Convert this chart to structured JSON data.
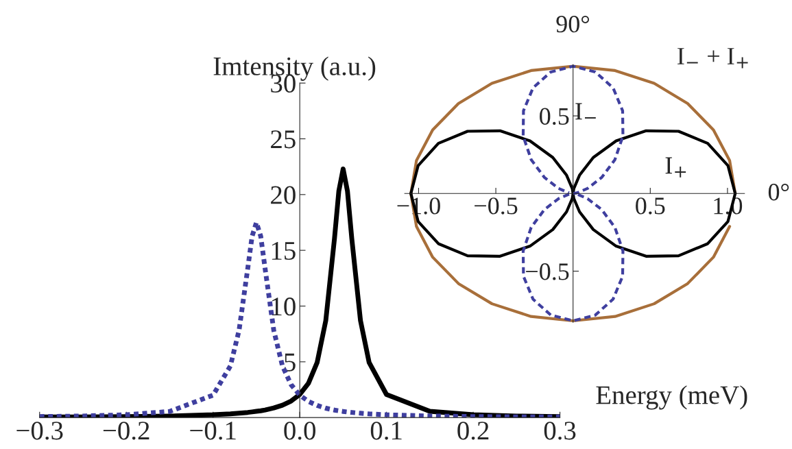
{
  "chart_data": [
    {
      "type": "line",
      "xlabel": "Energy (meV)",
      "ylabel": "Imtensity (a.u.)",
      "x": [
        -0.3,
        -0.25,
        -0.2,
        -0.15,
        -0.1,
        -0.08,
        -0.07,
        -0.06,
        -0.055,
        -0.05,
        -0.045,
        -0.04,
        -0.03,
        -0.02,
        -0.01,
        0,
        0.01,
        0.02,
        0.03,
        0.04,
        0.045,
        0.05,
        0.055,
        0.06,
        0.07,
        0.08,
        0.1,
        0.15,
        0.2,
        0.25,
        0.3
      ],
      "series": [
        {
          "color": "#000000",
          "line_style": "solid",
          "values": [
            0.05,
            0.06,
            0.09,
            0.14,
            0.25,
            0.33,
            0.39,
            0.46,
            0.51,
            0.56,
            0.61,
            0.68,
            0.86,
            1.11,
            1.48,
            2.07,
            3.08,
            4.93,
            8.7,
            16.04,
            20.3,
            22.3,
            20.3,
            16.04,
            8.7,
            4.93,
            2.07,
            0.56,
            0.25,
            0.14,
            0.09
          ]
        },
        {
          "color": "#3f3f9f",
          "line_style": "dotted",
          "values": [
            0.09,
            0.14,
            0.25,
            0.55,
            2.01,
            4.63,
            7.83,
            13.37,
            16.25,
            17.5,
            16.25,
            13.37,
            7.83,
            4.63,
            2.95,
            2.01,
            1.45,
            1.09,
            0.84,
            0.67,
            0.61,
            0.55,
            0.5,
            0.46,
            0.39,
            0.33,
            0.25,
            0.14,
            0.09,
            0.06,
            0.05
          ]
        }
      ],
      "xlim": [
        -0.3,
        0.3
      ],
      "ylim": [
        0,
        30
      ],
      "xticks": [
        {
          "value": -0.3,
          "label": "−0.3"
        },
        {
          "value": -0.2,
          "label": "−0.2"
        },
        {
          "value": -0.1,
          "label": "−0.1"
        },
        {
          "value": 0,
          "label": "0.0"
        },
        {
          "value": 0.1,
          "label": "0.1"
        },
        {
          "value": 0.2,
          "label": "0.2"
        },
        {
          "value": 0.3,
          "label": "0.3"
        }
      ],
      "yticks": [
        5,
        10,
        15,
        20,
        25,
        30
      ]
    },
    {
      "type": "line",
      "annotations": [
        "90°",
        "0°",
        "I$_{−}$ + I$_{+}$",
        "I$_{−}$",
        "I$_{+}$"
      ],
      "series": [
        {
          "color": "#a86f3a",
          "line_style": "solid",
          "x": [
            1.05,
            1.014,
            0.909,
            0.742,
            0.525,
            0.272,
            0,
            -0.272,
            -0.525,
            -0.742,
            -0.909,
            -1.014,
            -1.05,
            -1.014,
            -0.909,
            -0.742,
            -0.525,
            -0.272,
            0,
            0.272,
            0.525,
            0.742,
            0.909,
            1.014
          ],
          "values": [
            0,
            0.212,
            0.41,
            0.58,
            0.71,
            0.792,
            0.82,
            0.792,
            0.71,
            0.58,
            0.41,
            0.212,
            0,
            -0.212,
            -0.41,
            -0.58,
            -0.71,
            -0.792,
            -0.82,
            -0.792,
            -0.71,
            -0.58,
            -0.41,
            -0.212
          ]
        },
        {
          "color": "#000000",
          "line_style": "solid",
          "x": [
            -1.05,
            -1.003,
            -0.872,
            -0.683,
            -0.473,
            -0.279,
            -0.131,
            -0.042,
            -0.005,
            0,
            0.005,
            0.042,
            0.131,
            0.279,
            0.473,
            0.683,
            0.872,
            1.003,
            1.05
          ],
          "values": [
            0,
            0.18,
            0.323,
            0.401,
            0.404,
            0.339,
            0.232,
            0.118,
            0.032,
            0,
            0.032,
            0.118,
            0.232,
            0.339,
            0.404,
            0.401,
            0.323,
            0.18,
            0
          ]
        },
        {
          "color": "#000000",
          "line_style": "solid",
          "x": [
            -1.05,
            -1.003,
            -0.872,
            -0.683,
            -0.473,
            -0.279,
            -0.131,
            -0.042,
            -0.005,
            0,
            0.005,
            0.042,
            0.131,
            0.279,
            0.473,
            0.683,
            0.872,
            1.003,
            1.05
          ],
          "values": [
            0,
            -0.18,
            -0.323,
            -0.401,
            -0.404,
            -0.339,
            -0.232,
            -0.118,
            -0.032,
            0,
            -0.032,
            -0.118,
            -0.232,
            -0.339,
            -0.404,
            -0.401,
            -0.323,
            -0.18,
            0
          ]
        },
        {
          "color": "#3f3f9f",
          "line_style": "dashed",
          "x": [
            0,
            0.026,
            0.094,
            0.185,
            0.271,
            0.323,
            0.321,
            0.259,
            0.144,
            0,
            -0.144,
            -0.259,
            -0.321,
            -0.323,
            -0.271,
            -0.185,
            -0.094,
            -0.026
          ],
          "values": [
            0,
            0.004,
            0.033,
            0.103,
            0.218,
            0.37,
            0.533,
            0.681,
            0.783,
            0.82,
            0.783,
            0.681,
            0.533,
            0.37,
            0.218,
            0.103,
            0.033,
            0.004
          ]
        },
        {
          "color": "#3f3f9f",
          "line_style": "dashed",
          "x": [
            -0.026,
            -0.094,
            -0.185,
            -0.271,
            -0.323,
            -0.321,
            -0.259,
            -0.144,
            0,
            0.144,
            0.259,
            0.321,
            0.323,
            0.271,
            0.185,
            0.094,
            0.026
          ],
          "values": [
            -0.004,
            -0.033,
            -0.103,
            -0.218,
            -0.37,
            -0.533,
            -0.681,
            -0.783,
            -0.82,
            -0.783,
            -0.681,
            -0.533,
            -0.37,
            -0.218,
            -0.103,
            -0.033,
            -0.004
          ]
        }
      ],
      "xlim": [
        -1.09,
        1.11
      ],
      "ylim": [
        -0.83,
        0.83
      ],
      "xticks": [
        {
          "value": -1.0,
          "label": "−1.0"
        },
        {
          "value": -0.5,
          "label": "−0.5"
        },
        0.5,
        {
          "value": 1.0,
          "label": "1.0"
        }
      ],
      "yticks": [
        {
          "value": -0.5,
          "label": "−0.5"
        },
        0.5
      ]
    }
  ]
}
